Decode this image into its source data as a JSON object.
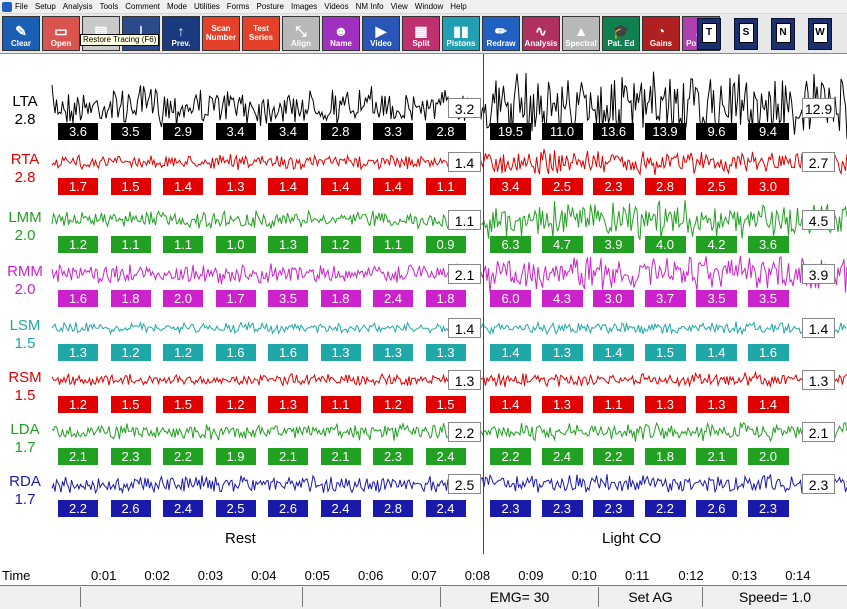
{
  "menu": [
    "File",
    "Setup",
    "Analysis",
    "Tools",
    "Comment",
    "Mode",
    "Utilities",
    "Forms",
    "Posture",
    "Images",
    "Videos",
    "NM Info",
    "View",
    "Window",
    "Help"
  ],
  "toolbar": [
    {
      "label": "Clear",
      "icon": "✎",
      "color": "#1a5fb4",
      "name": "clear-button"
    },
    {
      "label": "Open",
      "icon": "▭",
      "color": "#d9534f",
      "name": "open-button"
    },
    {
      "label": "Save",
      "icon": "▤",
      "color": "#c9c9c9",
      "name": "save-button"
    },
    {
      "label": "Next",
      "icon": "⊥",
      "color": "#2a4a8a",
      "name": "next-button"
    },
    {
      "label": "Prev.",
      "icon": "↑",
      "color": "#1a3a80",
      "name": "prev-button"
    },
    {
      "label": "Scan Number",
      "icon": "",
      "color": "#e4402a",
      "name": "scan-number-button"
    },
    {
      "label": "Test Series",
      "icon": "",
      "color": "#e4402a",
      "name": "test-series-button"
    },
    {
      "label": "Align",
      "icon": "⤡",
      "color": "#b8b8b8",
      "name": "align-button"
    },
    {
      "label": "Name",
      "icon": "☻",
      "color": "#a030c0",
      "name": "name-button"
    },
    {
      "label": "Video",
      "icon": "▶",
      "color": "#2a55b8",
      "name": "video-button"
    },
    {
      "label": "Split",
      "icon": "▦",
      "color": "#c03070",
      "name": "split-button"
    },
    {
      "label": "Pistons",
      "icon": "▮▮",
      "color": "#20a0b0",
      "name": "pistons-button"
    },
    {
      "label": "Redraw",
      "icon": "✏",
      "color": "#2060c0",
      "name": "redraw-button"
    },
    {
      "label": "Analysis",
      "icon": "∿",
      "color": "#b03060",
      "name": "analysis-button"
    },
    {
      "label": "Spectral",
      "icon": "▲",
      "color": "#b8b8b8",
      "name": "spectral-button"
    },
    {
      "label": "Pat. Ed",
      "icon": "🎓",
      "color": "#108050",
      "name": "pat-ed-button"
    },
    {
      "label": "Gains",
      "icon": "◔",
      "color": "#b02020",
      "name": "gains-button"
    },
    {
      "label": "Posture",
      "icon": "♟",
      "color": "#b040b0",
      "name": "posture-button"
    }
  ],
  "toolbar_letters": [
    "T",
    "S",
    "N",
    "W"
  ],
  "tooltip": "Restore Tracing (F6)",
  "channels": [
    {
      "name": "LTA",
      "gain": "2.8",
      "color": "#000000",
      "rest": [
        "3.6",
        "3.5",
        "2.9",
        "3.4",
        "3.4",
        "2.8",
        "3.3",
        "2.8"
      ],
      "rest_end": "3.2",
      "co": [
        "19.5",
        "11.0",
        "13.6",
        "13.9",
        "9.6",
        "9.4"
      ],
      "co_end": "12.9"
    },
    {
      "name": "RTA",
      "gain": "2.8",
      "color": "#e00000",
      "rest": [
        "1.7",
        "1.5",
        "1.4",
        "1.3",
        "1.4",
        "1.4",
        "1.4",
        "1.1"
      ],
      "rest_end": "1.4",
      "co": [
        "3.4",
        "2.5",
        "2.3",
        "2.8",
        "2.5",
        "3.0"
      ],
      "co_end": "2.7"
    },
    {
      "name": "LMM",
      "gain": "2.0",
      "color": "#22a022",
      "rest": [
        "1.2",
        "1.1",
        "1.1",
        "1.0",
        "1.3",
        "1.2",
        "1.1",
        "0.9"
      ],
      "rest_end": "1.1",
      "co": [
        "6.3",
        "4.7",
        "3.9",
        "4.0",
        "4.2",
        "3.6"
      ],
      "co_end": "4.5"
    },
    {
      "name": "RMM",
      "gain": "2.0",
      "color": "#cc22cc",
      "rest": [
        "1.6",
        "1.8",
        "2.0",
        "1.7",
        "3.5",
        "1.8",
        "2.4",
        "1.8"
      ],
      "rest_end": "2.1",
      "co": [
        "6.0",
        "4.3",
        "3.0",
        "3.7",
        "3.5",
        "3.5"
      ],
      "co_end": "3.9"
    },
    {
      "name": "LSM",
      "gain": "1.5",
      "color": "#20a8a8",
      "rest": [
        "1.3",
        "1.2",
        "1.2",
        "1.6",
        "1.6",
        "1.3",
        "1.3",
        "1.3"
      ],
      "rest_end": "1.4",
      "co": [
        "1.4",
        "1.3",
        "1.4",
        "1.5",
        "1.4",
        "1.6"
      ],
      "co_end": "1.4"
    },
    {
      "name": "RSM",
      "gain": "1.5",
      "color": "#e00000",
      "rest": [
        "1.2",
        "1.5",
        "1.5",
        "1.2",
        "1.3",
        "1.1",
        "1.2",
        "1.5"
      ],
      "rest_end": "1.3",
      "co": [
        "1.4",
        "1.3",
        "1.1",
        "1.3",
        "1.3",
        "1.4"
      ],
      "co_end": "1.3"
    },
    {
      "name": "LDA",
      "gain": "1.7",
      "color": "#22a022",
      "rest": [
        "2.1",
        "2.3",
        "2.2",
        "1.9",
        "2.1",
        "2.1",
        "2.3",
        "2.4"
      ],
      "rest_end": "2.2",
      "co": [
        "2.2",
        "2.4",
        "2.2",
        "1.8",
        "2.1",
        "2.0"
      ],
      "co_end": "2.1"
    },
    {
      "name": "RDA",
      "gain": "1.7",
      "color": "#1a1aaa",
      "rest": [
        "2.2",
        "2.6",
        "2.4",
        "2.5",
        "2.6",
        "2.4",
        "2.8",
        "2.4"
      ],
      "rest_end": "2.5",
      "co": [
        "2.3",
        "2.3",
        "2.3",
        "2.2",
        "2.6",
        "2.3"
      ],
      "co_end": "2.3"
    }
  ],
  "sections": {
    "rest": "Rest",
    "co": "Light CO"
  },
  "time": {
    "label": "Time",
    "ticks": [
      "0:01",
      "0:02",
      "0:03",
      "0:04",
      "0:05",
      "0:06",
      "0:07",
      "0:08",
      "0:09",
      "0:10",
      "0:11",
      "0:12",
      "0:13",
      "0:14"
    ]
  },
  "status": {
    "emg": "EMG= 30",
    "set_ag": "Set AG",
    "speed": "Speed= 1.0"
  }
}
